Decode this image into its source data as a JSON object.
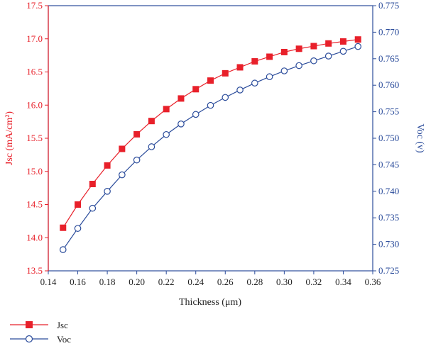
{
  "chart_data": {
    "type": "line",
    "x": [
      0.15,
      0.16,
      0.17,
      0.18,
      0.19,
      0.2,
      0.21,
      0.22,
      0.23,
      0.24,
      0.25,
      0.26,
      0.27,
      0.28,
      0.29,
      0.3,
      0.31,
      0.32,
      0.33,
      0.34,
      0.35
    ],
    "xlabel": "Thickness (μm)",
    "xlim": [
      0.14,
      0.36
    ],
    "xticks": [
      "0.14",
      "0.16",
      "0.18",
      "0.20",
      "0.22",
      "0.24",
      "0.26",
      "0.28",
      "0.30",
      "0.32",
      "0.34",
      "0.36"
    ],
    "y_left": {
      "label": "Jsc (mA/cm²)",
      "lim": [
        13.5,
        17.5
      ],
      "ticks": [
        "13.5",
        "14.0",
        "14.5",
        "15.0",
        "15.5",
        "16.0",
        "16.5",
        "17.0",
        "17.5"
      ],
      "color": "#e8202a"
    },
    "y_right": {
      "label": "Voc (v)",
      "lim": [
        0.725,
        0.775
      ],
      "ticks": [
        "0.725",
        "0.730",
        "0.735",
        "0.740",
        "0.745",
        "0.750",
        "0.755",
        "0.760",
        "0.765",
        "0.770",
        "0.775"
      ],
      "color": "#2b4c9b"
    },
    "series": [
      {
        "name": "Jsc",
        "axis": "left",
        "marker": "filled-square",
        "color": "#e8202a",
        "values": [
          14.15,
          14.5,
          14.81,
          15.09,
          15.34,
          15.56,
          15.76,
          15.94,
          16.1,
          16.24,
          16.37,
          16.48,
          16.57,
          16.66,
          16.73,
          16.8,
          16.85,
          16.89,
          16.93,
          16.96,
          16.99
        ]
      },
      {
        "name": "Voc",
        "axis": "right",
        "marker": "open-circle",
        "color": "#2b4c9b",
        "values": [
          0.729,
          0.733,
          0.7368,
          0.74,
          0.7431,
          0.7459,
          0.7484,
          0.7507,
          0.7527,
          0.7545,
          0.7562,
          0.7577,
          0.7591,
          0.7604,
          0.7616,
          0.7627,
          0.7637,
          0.7646,
          0.7655,
          0.7664,
          0.7673
        ]
      }
    ],
    "legend_position": "bottom-left",
    "grid": false
  }
}
